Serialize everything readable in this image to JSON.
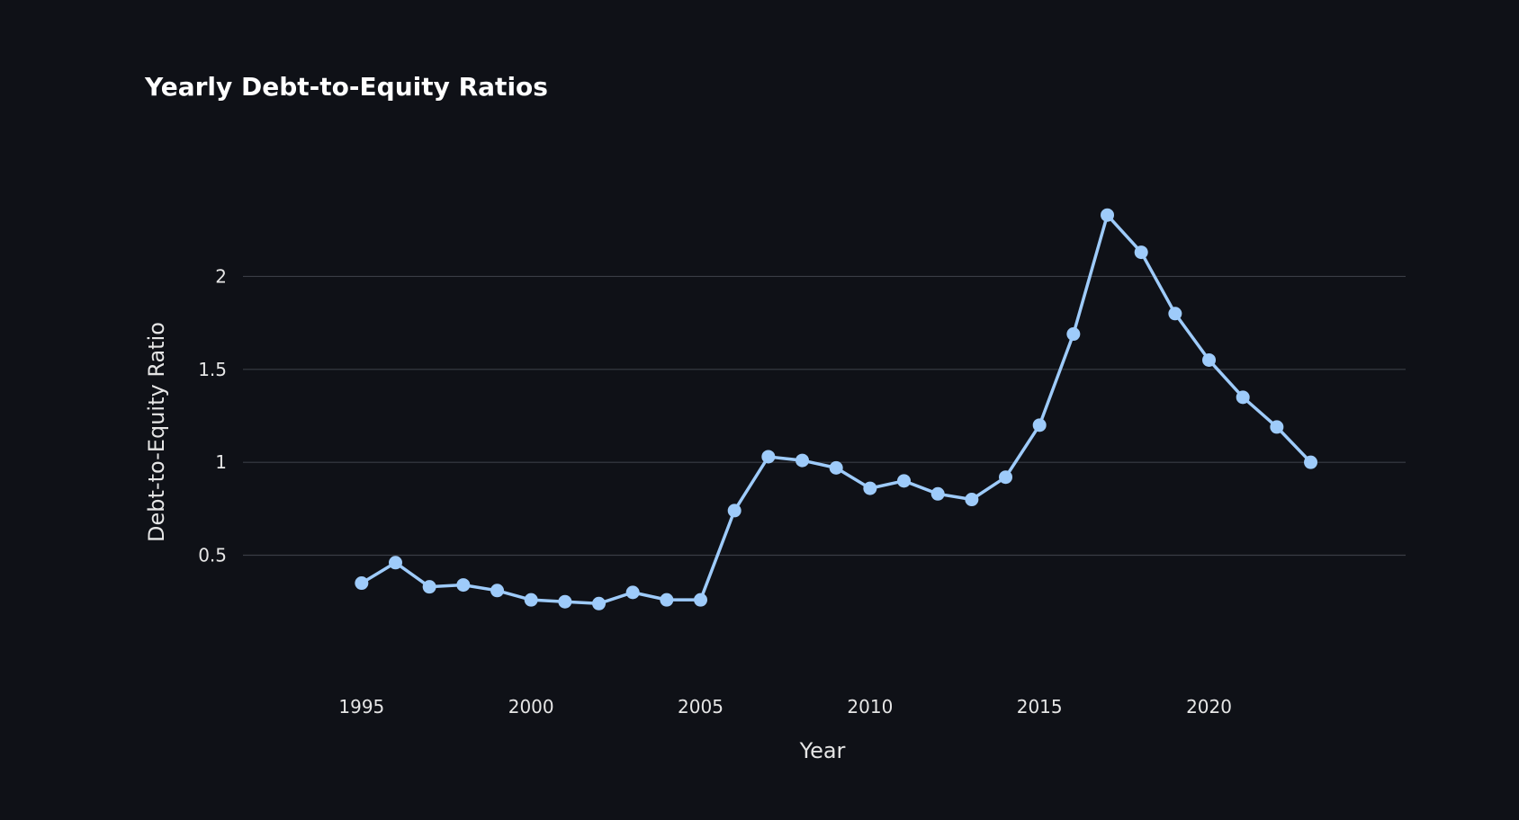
{
  "chart_data": {
    "type": "line",
    "title": "Yearly Debt-to-Equity Ratios",
    "xlabel": "Year",
    "ylabel": "Debt-to-Equity Ratio",
    "x": [
      1995,
      1996,
      1997,
      1998,
      1999,
      2000,
      2001,
      2002,
      2003,
      2004,
      2005,
      2006,
      2007,
      2008,
      2009,
      2010,
      2011,
      2012,
      2013,
      2014,
      2015,
      2016,
      2017,
      2018,
      2019,
      2020,
      2021,
      2022,
      2023
    ],
    "series": [
      {
        "values": [
          0.35,
          0.46,
          0.33,
          0.34,
          0.31,
          0.26,
          0.25,
          0.24,
          0.3,
          0.26,
          0.26,
          0.74,
          1.03,
          1.01,
          0.97,
          0.86,
          0.9,
          0.83,
          0.8,
          0.92,
          1.2,
          1.69,
          2.33,
          2.13,
          1.8,
          1.55,
          1.35,
          1.19,
          1.0
        ],
        "color": "#9ecbfa"
      }
    ],
    "x_ticks": [
      1995,
      2000,
      2005,
      2010,
      2015,
      2020
    ],
    "y_ticks": [
      0.5,
      1,
      1.5,
      2
    ],
    "y_tick_labels": [
      "0.5",
      "1",
      "1.5",
      "2"
    ],
    "xlim": [
      1991.5,
      2025.8
    ],
    "ylim": [
      -0.165,
      2.81
    ],
    "grid": "horizontal",
    "legend": "none"
  }
}
